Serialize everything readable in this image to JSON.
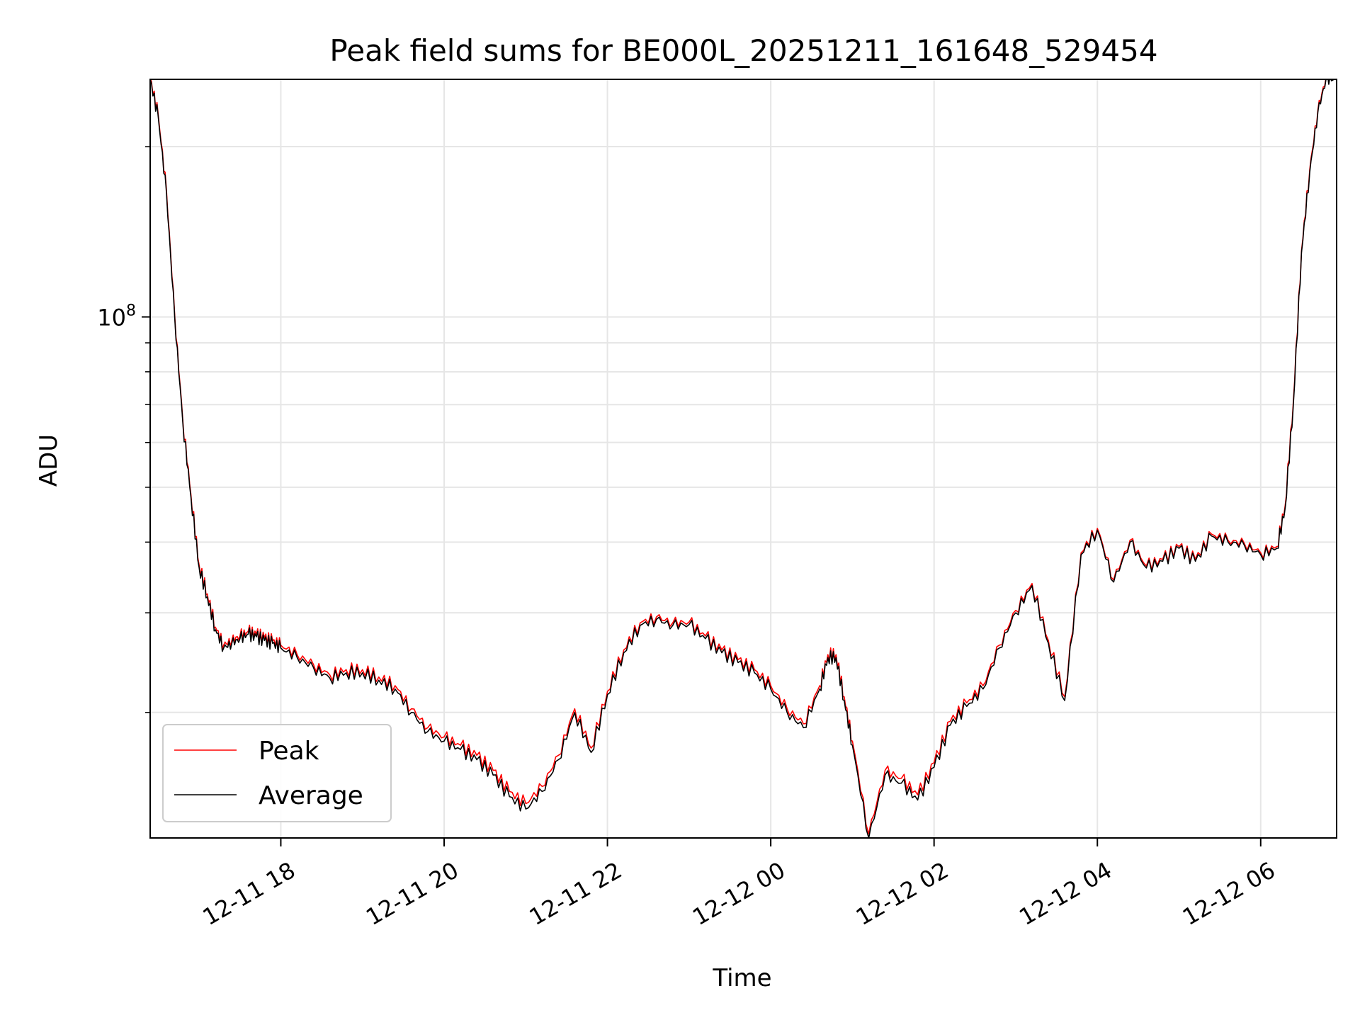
{
  "chart_data": {
    "type": "line",
    "title": "Peak field sums for BE000L_20251211_161648_529454",
    "xlabel": "Time",
    "ylabel": "ADU",
    "yscale": "log",
    "ylim": [
      12000000,
      263000000
    ],
    "xlim_hours": [
      16.4,
      30.93
    ],
    "xaxis_origin": "2025-12-11 00:00",
    "x_ticks": [
      {
        "hour": 18,
        "label": "12-11 18"
      },
      {
        "hour": 20,
        "label": "12-11 20"
      },
      {
        "hour": 22,
        "label": "12-11 22"
      },
      {
        "hour": 24,
        "label": "12-12 00"
      },
      {
        "hour": 26,
        "label": "12-12 02"
      },
      {
        "hour": 28,
        "label": "12-12 04"
      },
      {
        "hour": 30,
        "label": "12-12 06"
      }
    ],
    "y_major_tick": {
      "value": 100000000,
      "base": "10",
      "exp": "8"
    },
    "y_minor_ticks": [
      20000000,
      30000000,
      40000000,
      50000000,
      60000000,
      70000000,
      80000000,
      90000000,
      200000000
    ],
    "grid": true,
    "legend_position": "lower-left",
    "x_hours": [
      16.4,
      16.5,
      16.6,
      16.7,
      16.8,
      16.9,
      17.0,
      17.1,
      17.2,
      17.3,
      17.4,
      17.5,
      17.6,
      17.7,
      17.8,
      17.9,
      18.0,
      18.2,
      18.4,
      18.6,
      18.8,
      19.0,
      19.2,
      19.4,
      19.6,
      19.8,
      20.0,
      20.2,
      20.4,
      20.6,
      20.8,
      21.0,
      21.2,
      21.4,
      21.6,
      21.8,
      22.0,
      22.2,
      22.4,
      22.6,
      22.8,
      23.0,
      23.2,
      23.4,
      23.6,
      23.8,
      24.0,
      24.2,
      24.4,
      24.6,
      24.7,
      24.8,
      24.9,
      25.0,
      25.2,
      25.4,
      25.6,
      25.8,
      26.0,
      26.2,
      26.4,
      26.6,
      26.8,
      27.0,
      27.2,
      27.4,
      27.6,
      27.8,
      28.0,
      28.2,
      28.4,
      28.6,
      28.8,
      29.0,
      29.2,
      29.4,
      29.6,
      29.8,
      30.0,
      30.2,
      30.3,
      30.4,
      30.5,
      30.6,
      30.7,
      30.8,
      30.9
    ],
    "series": [
      {
        "name": "Average",
        "color": "#000000",
        "values": [
          263000000,
          225000000,
          165000000,
          100000000,
          65000000,
          48000000,
          36000000,
          32000000,
          28000000,
          26000000,
          26500000,
          27000000,
          27500000,
          27200000,
          26800000,
          26500000,
          26000000,
          25000000,
          24000000,
          23000000,
          23500000,
          23500000,
          22800000,
          22000000,
          20000000,
          18500000,
          17800000,
          17200000,
          16500000,
          15500000,
          14200000,
          13500000,
          14500000,
          16500000,
          20000000,
          17000000,
          21500000,
          25500000,
          28500000,
          29200000,
          28500000,
          28600000,
          27000000,
          25500000,
          24500000,
          23500000,
          22000000,
          20000000,
          18800000,
          22000000,
          25000000,
          25000000,
          21000000,
          17500000,
          12000000,
          15500000,
          15000000,
          14000000,
          16000000,
          19000000,
          20500000,
          22000000,
          26000000,
          30000000,
          33500000,
          26500000,
          21000000,
          38000000,
          42000000,
          34000000,
          40000000,
          36000000,
          37000000,
          39000000,
          37000000,
          41000000,
          40000000,
          39500000,
          38000000,
          39000000,
          46000000,
          70000000,
          130000000,
          180000000,
          230000000,
          263000000,
          263000000
        ]
      },
      {
        "name": "Peak",
        "color": "#ff0000",
        "values": [
          265000000,
          227000000,
          167000000,
          101000000,
          65600000,
          48500000,
          36400000,
          32400000,
          28300000,
          26300000,
          26800000,
          27300000,
          27800000,
          27500000,
          27100000,
          26800000,
          26300000,
          25300000,
          24300000,
          23300000,
          23800000,
          23800000,
          23100000,
          22300000,
          20300000,
          18800000,
          18100000,
          17500000,
          16800000,
          15800000,
          14500000,
          13800000,
          14800000,
          16800000,
          20300000,
          17300000,
          21800000,
          25800000,
          28800000,
          29500000,
          28800000,
          28900000,
          27300000,
          25800000,
          24800000,
          23800000,
          22300000,
          20300000,
          19100000,
          22300000,
          25300000,
          25300000,
          21300000,
          17800000,
          12200000,
          15800000,
          15300000,
          14300000,
          16300000,
          19300000,
          20800000,
          22300000,
          26300000,
          30300000,
          33800000,
          26800000,
          21300000,
          38300000,
          42300000,
          34300000,
          40300000,
          36300000,
          37300000,
          39300000,
          37300000,
          41300000,
          40300000,
          39800000,
          38300000,
          39300000,
          46500000,
          71000000,
          131000000,
          182000000,
          232000000,
          265000000,
          265000000
        ]
      }
    ],
    "legend": [
      {
        "label": "Peak",
        "color": "#ff0000"
      },
      {
        "label": "Average",
        "color": "#000000"
      }
    ]
  }
}
